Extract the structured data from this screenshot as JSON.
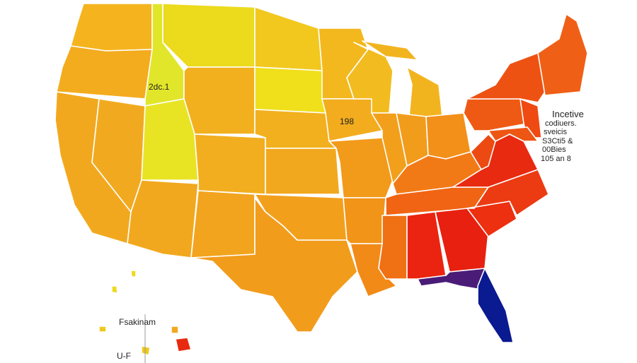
{
  "map": {
    "state_labels": [
      "2dc.1",
      "198"
    ],
    "legend_lines": [
      "Incetive",
      "codiuers.",
      "sveicis",
      "S3Cti5 &",
      "00Bies",
      "105 an 8"
    ],
    "inset_labels": [
      "Fsakinam",
      "U-F"
    ]
  }
}
